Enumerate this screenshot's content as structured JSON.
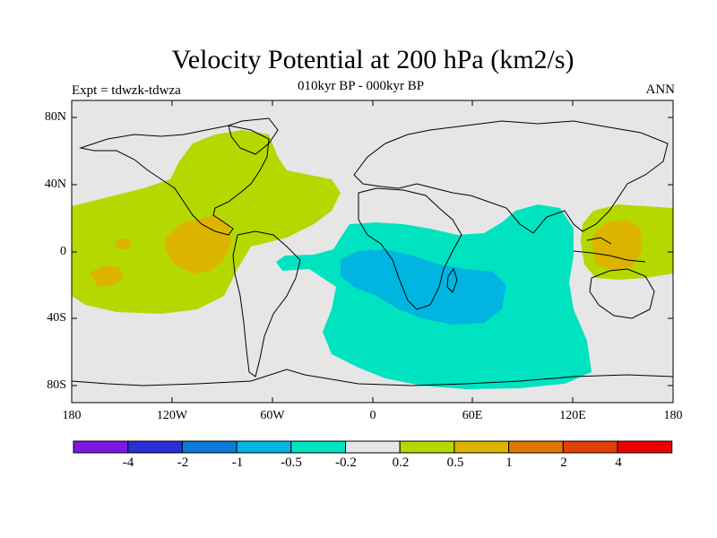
{
  "title": "Velocity Potential at 200 hPa (km2/s)",
  "subtitle": "010kyr BP - 000kyr BP",
  "left_label": "Expt = tdwzk-tdwza",
  "right_label": "ANN",
  "lat_labels": [
    "80N",
    "40N",
    "0",
    "40S",
    "80S"
  ],
  "lon_labels": [
    "180",
    "120W",
    "60W",
    "0",
    "60E",
    "120E",
    "180"
  ],
  "colorbar": {
    "labels": [
      "-4",
      "-2",
      "-1",
      "-0.5",
      "-0.2",
      "0.2",
      "0.5",
      "1",
      "2",
      "4"
    ],
    "colors": [
      "#7b19e0",
      "#2a2fd6",
      "#0a7bd8",
      "#00b5e0",
      "#00e3c0",
      "#e6e6e6",
      "#b4d800",
      "#dcb400",
      "#e07800",
      "#e04000",
      "#ee0000"
    ]
  },
  "map_colors": {
    "background": "#e6e6e6",
    "positive_0_2": "#b4d800",
    "positive_0_5": "#dcb400",
    "negative_0_2": "#00e3c0",
    "negative_0_5": "#00b5e0"
  }
}
